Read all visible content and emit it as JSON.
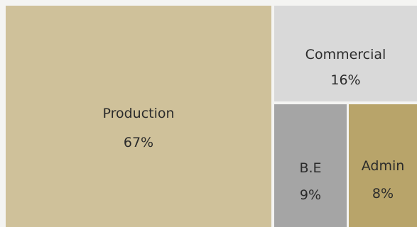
{
  "chart_data": {
    "type": "treemap",
    "title": "",
    "items": [
      {
        "name": "Production",
        "value": 67,
        "label": "67%",
        "color": "#cfc19a"
      },
      {
        "name": "Commercial",
        "value": 16,
        "label": "16%",
        "color": "#d9d9d9"
      },
      {
        "name": "B.E",
        "value": 9,
        "label": "9%",
        "color": "#a5a5a5"
      },
      {
        "name": "Admin",
        "value": 8,
        "label": "8%",
        "color": "#b8a46a"
      }
    ],
    "background": "#f4f4f2"
  }
}
